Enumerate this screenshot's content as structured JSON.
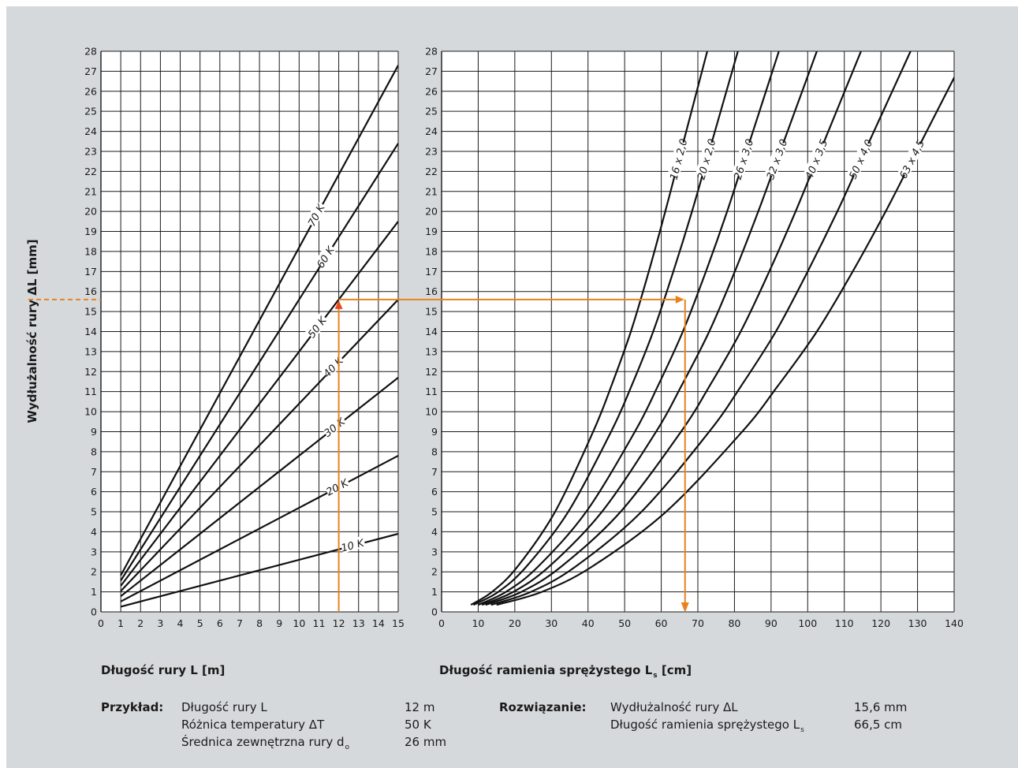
{
  "chart_data": [
    {
      "type": "line",
      "xlabel": "Długość rury L [m]",
      "ylabel": "Wydłużalność rury ΔL [mm]",
      "xlim": [
        0,
        15
      ],
      "ylim": [
        0,
        28
      ],
      "x_ticks": [
        "0",
        "1",
        "2",
        "3",
        "4",
        "5",
        "6",
        "7",
        "8",
        "9",
        "10",
        "11",
        "12",
        "13",
        "14",
        "15"
      ],
      "y_ticks": [
        "0",
        "1",
        "2",
        "3",
        "4",
        "5",
        "6",
        "7",
        "8",
        "9",
        "10",
        "11",
        "12",
        "13",
        "14",
        "15",
        "16",
        "17",
        "18",
        "19",
        "20",
        "21",
        "22",
        "23",
        "24",
        "25",
        "26",
        "27",
        "28"
      ],
      "grid": true,
      "series": [
        {
          "name": "10 K",
          "x": [
            1,
            15
          ],
          "y": [
            0.26,
            3.9
          ]
        },
        {
          "name": "20 K",
          "x": [
            1,
            15
          ],
          "y": [
            0.52,
            7.8
          ]
        },
        {
          "name": "30 K",
          "x": [
            1,
            15
          ],
          "y": [
            0.78,
            11.7
          ]
        },
        {
          "name": "40 K",
          "x": [
            1,
            15
          ],
          "y": [
            1.04,
            15.6
          ]
        },
        {
          "name": "50 K",
          "x": [
            1,
            15
          ],
          "y": [
            1.3,
            19.5
          ]
        },
        {
          "name": "60 K",
          "x": [
            1,
            15
          ],
          "y": [
            1.56,
            23.4
          ]
        },
        {
          "name": "70 K",
          "x": [
            1,
            15
          ],
          "y": [
            1.82,
            27.3
          ]
        }
      ]
    },
    {
      "type": "line",
      "xlabel": "Długość ramienia sprężystego L",
      "xlabel_sub": "s",
      "xlabel_unit": "[cm]",
      "xlim": [
        0,
        140
      ],
      "ylim": [
        0,
        28
      ],
      "x_ticks": [
        "0",
        "10",
        "20",
        "30",
        "40",
        "50",
        "60",
        "70",
        "80",
        "90",
        "100",
        "110",
        "120",
        "130",
        "140"
      ],
      "y_ticks": [
        "0",
        "1",
        "2",
        "3",
        "4",
        "5",
        "6",
        "7",
        "8",
        "9",
        "10",
        "11",
        "12",
        "13",
        "14",
        "15",
        "16",
        "17",
        "18",
        "19",
        "20",
        "21",
        "22",
        "23",
        "24",
        "25",
        "26",
        "27",
        "28"
      ],
      "grid": true,
      "series": [
        {
          "name": "16 x 2,0",
          "x": [
            8,
            13.8,
            20.7,
            31.0,
            41.4,
            46.3,
            51.7,
            56.6,
            61.1,
            65.4
          ],
          "y": [
            0.35,
            1,
            2.25,
            5,
            9,
            11.25,
            14,
            17,
            20,
            23
          ]
        },
        {
          "name": "20 x 2,0",
          "x": [
            8.7,
            15.5,
            23.1,
            34.6,
            46.3,
            51.8,
            57.8,
            63.3,
            68.4,
            73.1
          ],
          "y": [
            0.35,
            1,
            2.25,
            5,
            9,
            11.25,
            14,
            17,
            20,
            23
          ]
        },
        {
          "name": "26 x 3,0",
          "x": [
            10,
            17.6,
            26.3,
            39.5,
            52.8,
            59.0,
            65.9,
            72.2,
            78.0,
            83.3
          ],
          "y": [
            0.35,
            1,
            2.25,
            5,
            9,
            11.25,
            14,
            17,
            20,
            23
          ]
        },
        {
          "name": "32 x 3,0",
          "x": [
            11,
            19.6,
            29.3,
            43.8,
            58.6,
            65.4,
            73.1,
            80.1,
            86.5,
            92.5
          ],
          "y": [
            0.35,
            1,
            2.25,
            5,
            9,
            11.25,
            14,
            17,
            20,
            23
          ]
        },
        {
          "name": "40 x 3,5",
          "x": [
            12,
            21.8,
            32.6,
            48.9,
            65.4,
            73.1,
            81.7,
            89.5,
            96.7,
            103.4
          ],
          "y": [
            0.35,
            1,
            2.25,
            5,
            9,
            11.25,
            14,
            17,
            20,
            23
          ]
        },
        {
          "name": "50 x 4,0",
          "x": [
            13.5,
            24.4,
            36.5,
            54.6,
            73.1,
            81.7,
            91.3,
            100.0,
            108.1,
            115.6
          ],
          "y": [
            0.35,
            1,
            2.25,
            5,
            9,
            11.25,
            14,
            17,
            20,
            23
          ]
        },
        {
          "name": "63 x 4,5",
          "x": [
            15,
            27.4,
            41.0,
            61.3,
            82.1,
            91.7,
            102.5,
            112.3,
            121.3,
            129.7
          ],
          "y": [
            0.35,
            1,
            2.25,
            5,
            9,
            11.25,
            14,
            17,
            20,
            23
          ]
        }
      ],
      "example_path": {
        "L_m": 12,
        "dL_mm": 15.6,
        "Ls_cm": 66.5
      },
      "accent_color": "#e8821e"
    }
  ],
  "example": {
    "label": "Przykład:",
    "rows": [
      {
        "label": "Długość rury L",
        "label_sub": "",
        "value": "12 m"
      },
      {
        "label": "Różnica temperatury ΔT",
        "label_sub": "",
        "value": "50 K"
      },
      {
        "label": "Średnica zewnętrzna rury d",
        "label_sub": "o",
        "value": "26 mm"
      }
    ]
  },
  "solution": {
    "label": "Rozwiązanie:",
    "rows": [
      {
        "label": "Wydłużalność rury ΔL",
        "label_sub": "",
        "value": "15,6 mm"
      },
      {
        "label": "Długość ramienia sprężystego L",
        "label_sub": "s",
        "value": "66,5 cm"
      }
    ]
  }
}
